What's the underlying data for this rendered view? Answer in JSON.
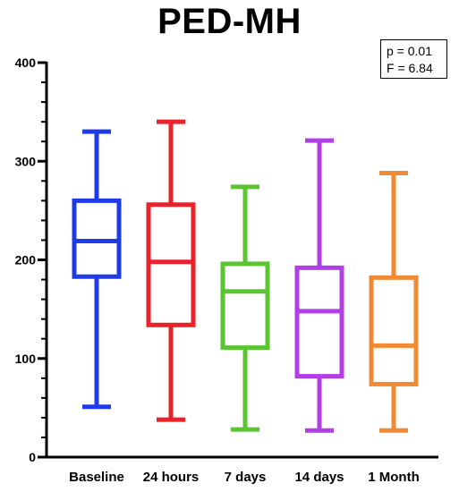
{
  "chart_data": {
    "type": "box",
    "title": "PED-MH",
    "xlabel": "",
    "ylabel": "",
    "ylim": [
      0,
      400
    ],
    "yticks": [
      0,
      100,
      200,
      300,
      400
    ],
    "grid": false,
    "categories": [
      "Baseline",
      "24 hours",
      "7 days",
      "14 days",
      "1 Month"
    ],
    "boxes": [
      {
        "category": "Baseline",
        "min": 51,
        "q1": 183,
        "median": 219,
        "q3": 260,
        "max": 330,
        "color": "#1f3be8"
      },
      {
        "category": "24 hours",
        "min": 38,
        "q1": 134,
        "median": 198,
        "q3": 256,
        "max": 340,
        "color": "#e8232b"
      },
      {
        "category": "7 days",
        "min": 28,
        "q1": 111,
        "median": 168,
        "q3": 196,
        "max": 274,
        "color": "#5ac531"
      },
      {
        "category": "14 days",
        "min": 27,
        "q1": 82,
        "median": 148,
        "q3": 192,
        "max": 321,
        "color": "#b23ee8"
      },
      {
        "category": "1 Month",
        "min": 27,
        "q1": 74,
        "median": 113,
        "q3": 182,
        "max": 288,
        "color": "#f08a34"
      }
    ],
    "annotation": {
      "p_text": "p = 0.01",
      "f_text": "F = 6.84"
    }
  }
}
